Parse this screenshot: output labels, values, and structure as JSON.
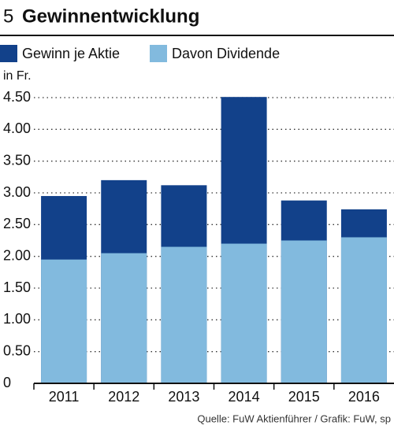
{
  "chart_data": {
    "type": "bar",
    "number": "5",
    "title": "Gewinnentwicklung",
    "y_label": "in Fr.",
    "source": "Quelle: FuW Aktienführer / Grafik: FuW, sp",
    "categories": [
      "2011",
      "2012",
      "2013",
      "2014",
      "2015",
      "2016"
    ],
    "series": [
      {
        "name": "Gewinn je Aktie",
        "color": "#12418a",
        "values": [
          2.95,
          3.2,
          3.12,
          4.51,
          2.88,
          2.74
        ]
      },
      {
        "name": "Davon Dividende",
        "color": "#82bade",
        "values": [
          1.95,
          2.05,
          2.15,
          2.2,
          2.25,
          2.3
        ]
      }
    ],
    "ylim": [
      0,
      4.5
    ],
    "yticks": [
      0,
      {
        "value": 0.5,
        "label": "0.50"
      },
      {
        "value": 1,
        "label": "1.00"
      },
      {
        "value": 1.5,
        "label": "1.50"
      },
      {
        "value": 2,
        "label": "2.00"
      },
      {
        "value": 2.5,
        "label": "2.50"
      },
      {
        "value": 3,
        "label": "3.00"
      },
      {
        "value": 3.5,
        "label": "3.50"
      },
      {
        "value": 4,
        "label": "4.00"
      },
      {
        "value": 4.5,
        "label": "4.50"
      }
    ],
    "grid": true
  }
}
